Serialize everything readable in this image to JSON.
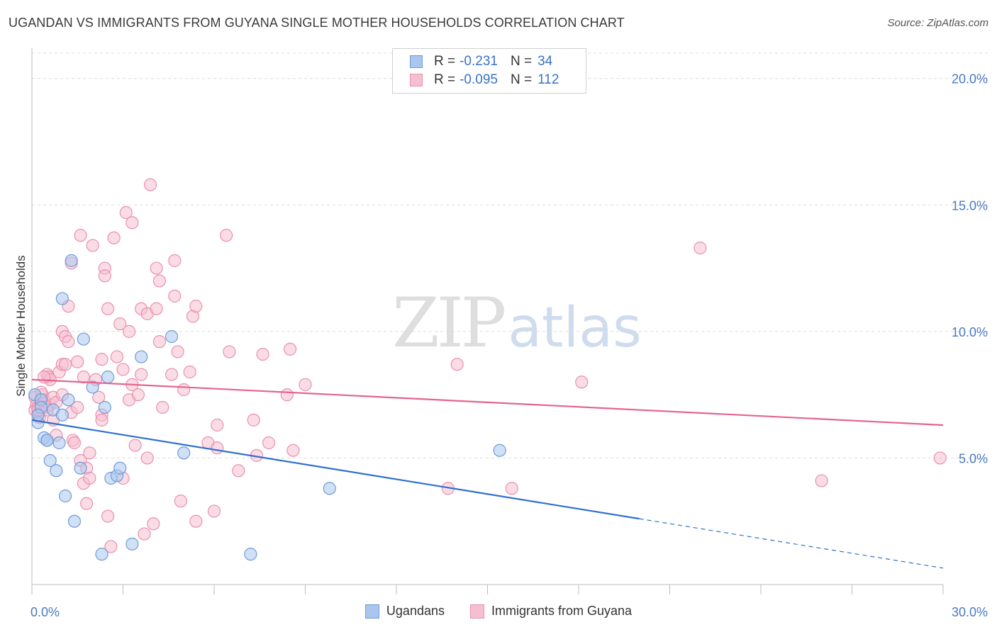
{
  "title": "UGANDAN VS IMMIGRANTS FROM GUYANA SINGLE MOTHER HOUSEHOLDS CORRELATION CHART",
  "source": "Source: ZipAtlas.com",
  "watermark": {
    "zip": "ZIP",
    "atlas": "atlas"
  },
  "legend_top": [
    {
      "r_label": "R =",
      "r_value": "-0.231",
      "n_label": "N =",
      "n_value": "34"
    },
    {
      "r_label": "R =",
      "r_value": "-0.095",
      "n_label": "N =",
      "n_value": "112"
    }
  ],
  "colors": {
    "blue_fill": "#a9c6ee",
    "blue_stroke": "#6f9bd9",
    "blue_line": "#2f6fcf",
    "pink_fill": "#f6bfd0",
    "pink_stroke": "#e990ae",
    "pink_line": "#e4648f",
    "tick_label": "#4a78c2",
    "grid": "#dcdcdc"
  },
  "chart_data": {
    "type": "scatter",
    "title": "UGANDAN VS IMMIGRANTS FROM GUYANA SINGLE MOTHER HOUSEHOLDS CORRELATION CHART",
    "xlabel": "",
    "ylabel": "Single Mother Households",
    "xlim": [
      0,
      30
    ],
    "ylim": [
      0,
      21
    ],
    "x_tick_labels": [
      {
        "value": 0,
        "label": "0.0%"
      },
      {
        "value": 30,
        "label": "30.0%"
      }
    ],
    "y_tick_labels": [
      {
        "value": 5,
        "label": "5.0%"
      },
      {
        "value": 10,
        "label": "10.0%"
      },
      {
        "value": 15,
        "label": "15.0%"
      },
      {
        "value": 20,
        "label": "20.0%"
      }
    ],
    "series": [
      {
        "name": "Ugandans",
        "points": [
          [
            0.1,
            7.5
          ],
          [
            0.2,
            6.4
          ],
          [
            0.3,
            7.3
          ],
          [
            0.4,
            5.8
          ],
          [
            0.5,
            5.7
          ],
          [
            0.6,
            4.9
          ],
          [
            0.7,
            6.9
          ],
          [
            0.8,
            4.5
          ],
          [
            1.0,
            6.7
          ],
          [
            1.0,
            11.3
          ],
          [
            1.1,
            3.5
          ],
          [
            1.2,
            7.3
          ],
          [
            1.3,
            12.8
          ],
          [
            1.4,
            2.5
          ],
          [
            1.6,
            4.6
          ],
          [
            1.7,
            9.7
          ],
          [
            2.0,
            7.8
          ],
          [
            2.3,
            1.2
          ],
          [
            2.4,
            7.0
          ],
          [
            2.5,
            8.2
          ],
          [
            2.6,
            4.2
          ],
          [
            2.8,
            4.3
          ],
          [
            2.9,
            4.6
          ],
          [
            3.3,
            1.6
          ],
          [
            3.6,
            9.0
          ],
          [
            4.6,
            9.8
          ],
          [
            5.0,
            5.2
          ],
          [
            7.2,
            1.2
          ],
          [
            9.8,
            3.8
          ],
          [
            15.4,
            5.3
          ],
          [
            0.5,
            5.7
          ],
          [
            0.3,
            7.0
          ],
          [
            0.9,
            5.6
          ],
          [
            0.2,
            6.7
          ]
        ],
        "trend": {
          "x0": 0,
          "y0": 6.5,
          "x1": 20,
          "y1": 2.6,
          "dashed_to_x": 30,
          "dashed_to_y": 0.65
        }
      },
      {
        "name": "Immigrants from Guyana",
        "points": [
          [
            0.1,
            7.4
          ],
          [
            0.1,
            6.9
          ],
          [
            0.15,
            7.1
          ],
          [
            0.2,
            6.8
          ],
          [
            0.2,
            7.0
          ],
          [
            0.25,
            6.6
          ],
          [
            0.3,
            6.9
          ],
          [
            0.3,
            7.2
          ],
          [
            0.35,
            7.5
          ],
          [
            0.4,
            7.3
          ],
          [
            0.45,
            7.0
          ],
          [
            0.5,
            8.3
          ],
          [
            0.55,
            8.2
          ],
          [
            0.6,
            8.1
          ],
          [
            0.6,
            7.1
          ],
          [
            0.7,
            7.4
          ],
          [
            0.8,
            5.9
          ],
          [
            0.8,
            7.2
          ],
          [
            0.9,
            8.4
          ],
          [
            1.0,
            10.0
          ],
          [
            1.0,
            8.7
          ],
          [
            1.0,
            7.5
          ],
          [
            1.1,
            9.8
          ],
          [
            1.1,
            8.7
          ],
          [
            1.2,
            11.0
          ],
          [
            1.2,
            9.6
          ],
          [
            1.3,
            6.8
          ],
          [
            1.35,
            5.7
          ],
          [
            1.4,
            5.6
          ],
          [
            1.5,
            8.8
          ],
          [
            1.5,
            7.0
          ],
          [
            1.6,
            4.9
          ],
          [
            1.6,
            13.8
          ],
          [
            1.7,
            4.0
          ],
          [
            1.7,
            8.2
          ],
          [
            1.8,
            4.6
          ],
          [
            1.8,
            3.2
          ],
          [
            1.9,
            5.2
          ],
          [
            1.9,
            4.2
          ],
          [
            2.0,
            13.4
          ],
          [
            2.1,
            8.1
          ],
          [
            2.2,
            7.4
          ],
          [
            2.3,
            6.7
          ],
          [
            2.3,
            8.9
          ],
          [
            2.4,
            12.5
          ],
          [
            2.4,
            12.2
          ],
          [
            2.5,
            10.9
          ],
          [
            2.5,
            2.7
          ],
          [
            2.6,
            1.5
          ],
          [
            2.7,
            13.7
          ],
          [
            2.8,
            9.0
          ],
          [
            2.9,
            10.3
          ],
          [
            3.0,
            4.2
          ],
          [
            3.0,
            8.5
          ],
          [
            3.1,
            14.7
          ],
          [
            3.2,
            10.0
          ],
          [
            3.2,
            7.3
          ],
          [
            3.3,
            7.9
          ],
          [
            3.3,
            14.3
          ],
          [
            3.4,
            5.5
          ],
          [
            3.5,
            7.5
          ],
          [
            3.6,
            8.3
          ],
          [
            3.6,
            10.9
          ],
          [
            3.7,
            2.0
          ],
          [
            3.8,
            10.7
          ],
          [
            3.8,
            5.0
          ],
          [
            3.9,
            15.8
          ],
          [
            4.0,
            2.4
          ],
          [
            4.1,
            10.9
          ],
          [
            4.1,
            12.5
          ],
          [
            4.2,
            9.6
          ],
          [
            4.2,
            12.0
          ],
          [
            4.3,
            7.0
          ],
          [
            4.6,
            8.3
          ],
          [
            4.7,
            11.4
          ],
          [
            4.7,
            12.8
          ],
          [
            4.8,
            9.2
          ],
          [
            4.9,
            3.3
          ],
          [
            5.0,
            7.7
          ],
          [
            5.2,
            8.4
          ],
          [
            5.3,
            10.6
          ],
          [
            5.4,
            11.0
          ],
          [
            5.4,
            2.5
          ],
          [
            5.8,
            5.6
          ],
          [
            6.0,
            2.9
          ],
          [
            6.1,
            5.4
          ],
          [
            6.1,
            6.3
          ],
          [
            6.4,
            13.8
          ],
          [
            6.5,
            9.2
          ],
          [
            6.8,
            4.5
          ],
          [
            7.3,
            6.5
          ],
          [
            7.4,
            5.1
          ],
          [
            7.6,
            9.1
          ],
          [
            7.8,
            5.6
          ],
          [
            8.4,
            7.5
          ],
          [
            8.5,
            9.3
          ],
          [
            8.6,
            5.3
          ],
          [
            9.0,
            7.9
          ],
          [
            13.7,
            3.8
          ],
          [
            14.0,
            8.7
          ],
          [
            15.8,
            3.8
          ],
          [
            18.1,
            8.0
          ],
          [
            22.0,
            13.3
          ],
          [
            26.0,
            4.1
          ],
          [
            29.9,
            5.0
          ],
          [
            0.2,
            6.9
          ],
          [
            0.4,
            8.2
          ],
          [
            0.3,
            7.6
          ],
          [
            0.5,
            6.9
          ],
          [
            0.7,
            6.5
          ],
          [
            1.3,
            12.7
          ],
          [
            2.3,
            6.5
          ]
        ],
        "trend": {
          "x0": 0,
          "y0": 8.1,
          "x1": 30,
          "y1": 6.3
        }
      }
    ]
  },
  "bottom_legend": [
    {
      "label": "Ugandans"
    },
    {
      "label": "Immigrants from Guyana"
    }
  ]
}
